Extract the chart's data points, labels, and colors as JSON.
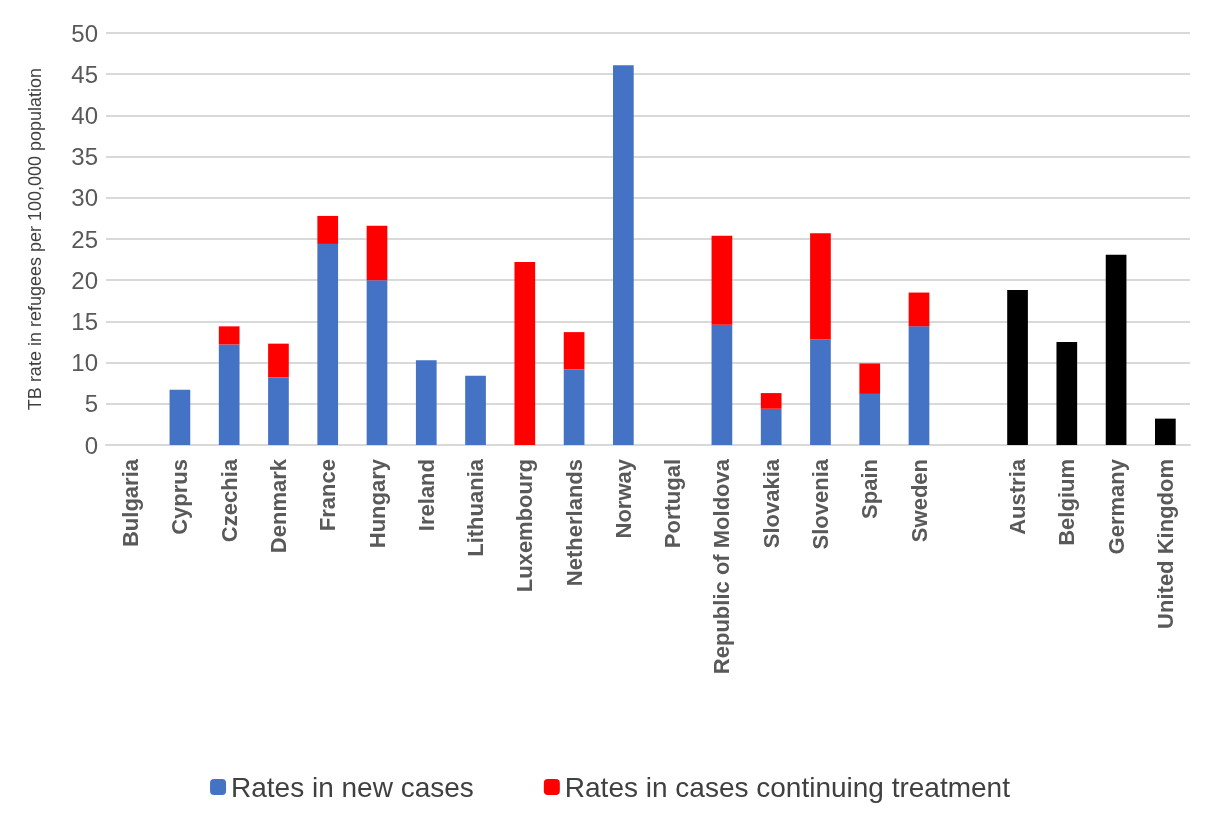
{
  "chart_data": {
    "type": "bar",
    "stacked": true,
    "ylabel": "TB rate in refugees per 100,000 population",
    "categories": [
      "Bulgaria",
      "Cyprus",
      "Czechia",
      "Denmark",
      "France",
      "Hungary",
      "Ireland",
      "Lithuania",
      "Luxembourg",
      "Netherlands",
      "Norway",
      "Portugal",
      "Republic of Moldova",
      "Slovakia",
      "Slovenia",
      "Spain",
      "Sweden",
      null,
      "Austria",
      "Belgium",
      "Germany",
      "United Kingdom"
    ],
    "series": [
      {
        "name": "Rates in new cases",
        "color": "#4472c4",
        "values": [
          0,
          6.7,
          12.2,
          8.2,
          24.4,
          20.0,
          10.3,
          8.4,
          0,
          9.2,
          46.1,
          0,
          14.6,
          4.4,
          12.8,
          6.2,
          14.4,
          null,
          null,
          null,
          null,
          null
        ]
      },
      {
        "name": "Rates in cases continuing treatment",
        "color": "#ff0000",
        "values": [
          0,
          null,
          2.2,
          4.1,
          3.4,
          6.6,
          null,
          null,
          22.2,
          4.5,
          null,
          0,
          10.8,
          1.9,
          12.9,
          3.7,
          4.1,
          null,
          null,
          null,
          null,
          null
        ]
      },
      {
        "color": "#000000",
        "values": [
          null,
          null,
          null,
          null,
          null,
          null,
          null,
          null,
          null,
          null,
          null,
          null,
          null,
          null,
          null,
          null,
          null,
          null,
          18.8,
          12.5,
          23.1,
          3.2
        ]
      }
    ],
    "ylim": [
      0,
      50
    ],
    "yticks": [
      0,
      5,
      10,
      15,
      20,
      25,
      30,
      35,
      40,
      45,
      50
    ],
    "grid": "y",
    "legend": "bottom"
  }
}
